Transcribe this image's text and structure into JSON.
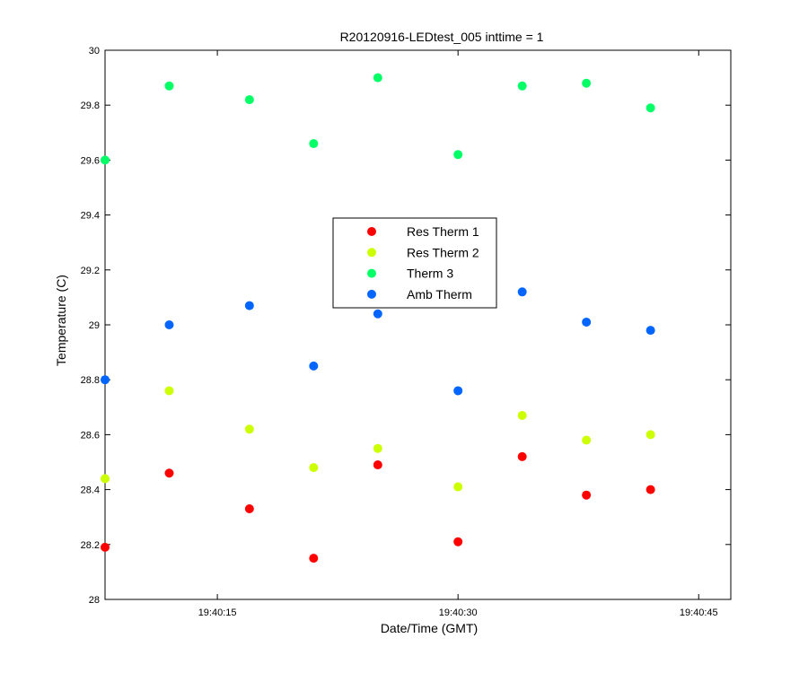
{
  "chart_data": {
    "type": "scatter",
    "title": "R20120916-LEDtest_005 inttime = 1",
    "xlabel": "Date/Time (GMT)",
    "ylabel": "Temperature (C)",
    "x_axis": {
      "kind": "time",
      "range": [
        "19:40:08",
        "19:40:47"
      ],
      "ticks": [
        "19:40:15",
        "19:40:30",
        "19:40:45"
      ]
    },
    "y_axis": {
      "range": [
        28,
        30
      ],
      "ticks": [
        "28",
        "28.2",
        "28.4",
        "28.6",
        "28.8",
        "29",
        "29.2",
        "29.4",
        "29.6",
        "29.8",
        "30"
      ]
    },
    "x": [
      "19:40:08",
      "19:40:12",
      "19:40:17",
      "19:40:21",
      "19:40:25",
      "19:40:30",
      "19:40:34",
      "19:40:38",
      "19:40:42"
    ],
    "legend": {
      "placement": "center"
    },
    "series": [
      {
        "name": "Res Therm 1",
        "color": "#ff0000",
        "values": [
          28.19,
          28.46,
          28.33,
          28.15,
          28.49,
          28.21,
          28.52,
          28.38,
          28.4
        ]
      },
      {
        "name": "Res Therm 2",
        "color": "#ccff00",
        "values": [
          28.44,
          28.76,
          28.62,
          28.48,
          28.55,
          28.41,
          28.67,
          28.58,
          28.6
        ]
      },
      {
        "name": "Therm 3",
        "color": "#00ff66",
        "values": [
          29.6,
          29.87,
          29.82,
          29.66,
          29.9,
          29.62,
          29.87,
          29.88,
          29.79
        ]
      },
      {
        "name": "Amb Therm",
        "color": "#0066ff",
        "values": [
          28.8,
          29.0,
          29.07,
          28.85,
          29.04,
          28.76,
          29.12,
          29.01,
          28.98
        ]
      }
    ]
  }
}
